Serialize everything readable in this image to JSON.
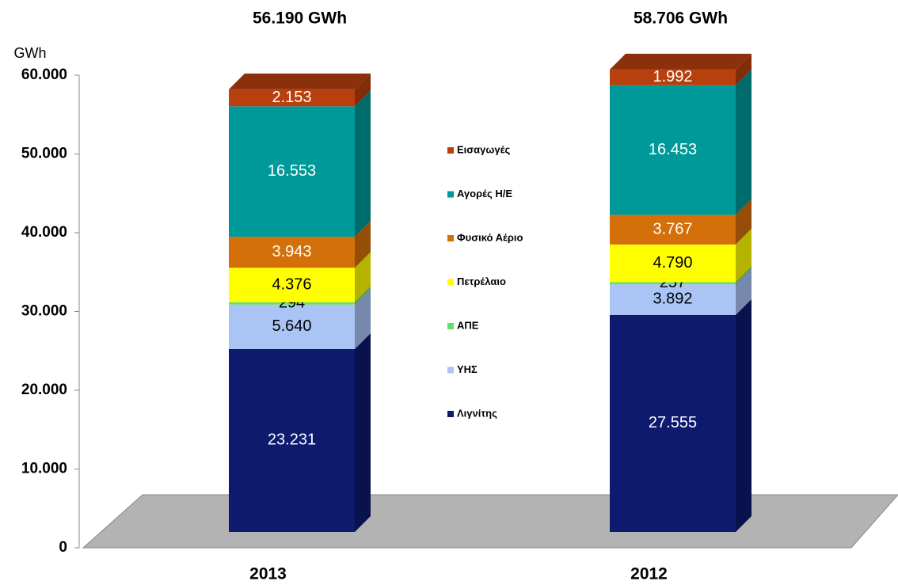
{
  "chart_data": {
    "type": "bar3d_stacked",
    "y_axis_label": "GWh",
    "categories": [
      "2013",
      "2012"
    ],
    "totals": [
      "56.190 GWh",
      "58.706 GWh"
    ],
    "series": [
      {
        "name": "Λιγνίτης",
        "color": "#0d1a6e",
        "label_color": "#ffffff",
        "values": [
          23231,
          27555
        ],
        "value_labels": [
          "23.231",
          "27.555"
        ]
      },
      {
        "name": "ΥΗΣ",
        "color": "#a9c4f5",
        "label_color": "#000000",
        "values": [
          5640,
          3892
        ],
        "value_labels": [
          "5.640",
          "3.892"
        ]
      },
      {
        "name": "ΑΠΕ",
        "color": "#66dd66",
        "label_color": "#000000",
        "values": [
          294,
          257
        ],
        "value_labels": [
          "294",
          "257"
        ]
      },
      {
        "name": "Πετρέλαιο",
        "color": "#ffff00",
        "label_color": "#000000",
        "values": [
          4376,
          4790
        ],
        "value_labels": [
          "4.376",
          "4.790"
        ]
      },
      {
        "name": "Φυσικό Αέριο",
        "color": "#d4700a",
        "label_color": "#ffffff",
        "values": [
          3943,
          3767
        ],
        "value_labels": [
          "3.943",
          "3.767"
        ]
      },
      {
        "name": "Αγορές Η/Ε",
        "color": "#009999",
        "label_color": "#ffffff",
        "values": [
          16553,
          16453
        ],
        "value_labels": [
          "16.553",
          "16.453"
        ]
      },
      {
        "name": "Εισαγωγές",
        "color": "#b8400e",
        "label_color": "#ffffff",
        "values": [
          2153,
          1992
        ],
        "value_labels": [
          "2.153",
          "1.992"
        ]
      }
    ],
    "ylim": [
      0,
      60000
    ],
    "yticks": [
      0,
      {
        "value": 10000,
        "label": "10.000"
      },
      {
        "value": 20000,
        "label": "20.000"
      },
      {
        "value": 30000,
        "label": "30.000"
      },
      {
        "value": 40000,
        "label": "40.000"
      },
      {
        "value": 50000,
        "label": "50.000"
      },
      {
        "value": 60000,
        "label": "60.000"
      }
    ],
    "legend": "center"
  }
}
